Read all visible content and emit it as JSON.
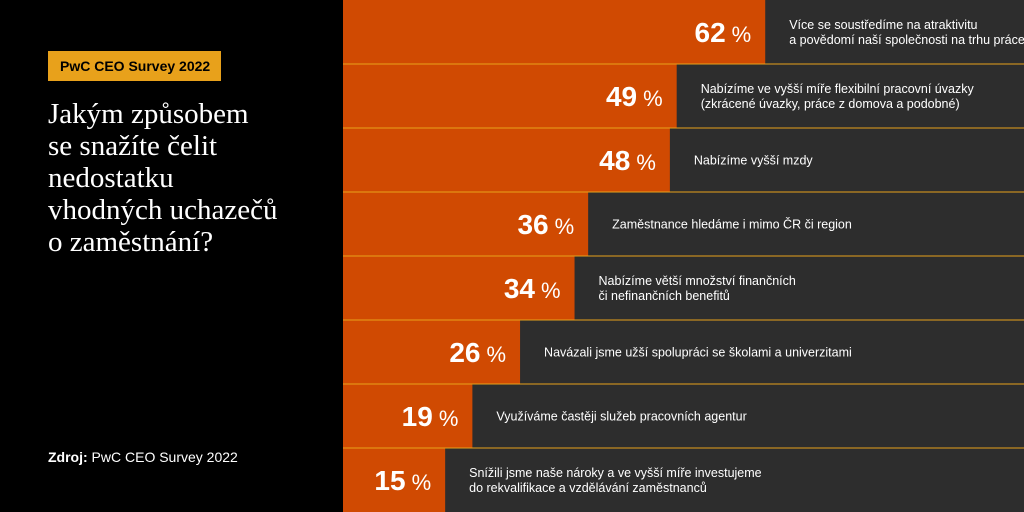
{
  "badge": "PwC CEO Survey 2022",
  "question": [
    "Jakým způsobem",
    "se snažíte čelit",
    "nedostatku",
    "vhodných uchazečů",
    "o zaměstnání?"
  ],
  "source": {
    "label": "Zdroj:",
    "text": "PwC CEO Survey 2022"
  },
  "colors": {
    "bar": "#d04a02",
    "row": "#2d2d2d",
    "badge": "#e8a11b",
    "background": "#000000"
  },
  "chart_data": {
    "type": "bar",
    "orientation": "horizontal",
    "unit": "%",
    "xlim": [
      0,
      100
    ],
    "categories": [
      [
        "Více se soustředíme na atraktivitu",
        "a povědomí naší společnosti na trhu práce"
      ],
      [
        "Nabízíme ve vyšší míře flexibilní pracovní úvazky",
        "(zkrácené úvazky, práce z domova a podobné)"
      ],
      [
        "Nabízíme vyšší mzdy"
      ],
      [
        "Zaměstnance hledáme i mimo ČR či region"
      ],
      [
        "Nabízíme větší množství finančních",
        "či nefinančních benefitů"
      ],
      [
        "Navázali jsme užší spolupráci se školami a univerzitami"
      ],
      [
        "Využíváme častěji služeb pracovních agentur"
      ],
      [
        "Snížili jsme naše nároky a ve vyšší míře investujeme",
        "do rekvalifikace a vzdělávání zaměstnanců"
      ]
    ],
    "values": [
      62,
      49,
      48,
      36,
      34,
      26,
      19,
      15
    ]
  }
}
